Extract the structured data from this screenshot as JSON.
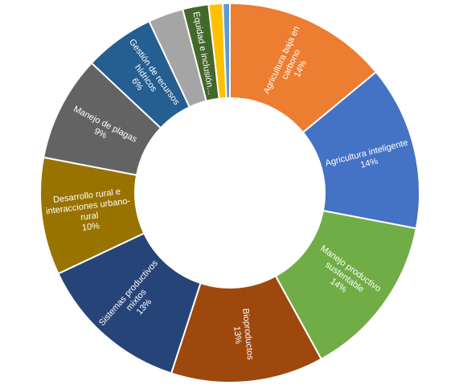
{
  "chart_data": {
    "type": "pie",
    "donut": true,
    "legend": "none",
    "slices": [
      {
        "label": "Agricultura baja en carbono",
        "lines": [
          "Agricultura baja en",
          "carbono",
          "14%"
        ],
        "value": 14,
        "color": "#ED7D31"
      },
      {
        "label": "Agricultura inteligente",
        "lines": [
          "Agricultura inteligente",
          "14%"
        ],
        "value": 14,
        "color": "#4472C4"
      },
      {
        "label": "Manejo productivo sustentable",
        "lines": [
          "Manejo productivo",
          "sustentable",
          "14%"
        ],
        "value": 14,
        "color": "#70AD47"
      },
      {
        "label": "Bioproductos",
        "lines": [
          "Bioproductos",
          "13%"
        ],
        "value": 13,
        "color": "#9E480E"
      },
      {
        "label": "Sistemas productivos mixtos",
        "lines": [
          "Sistemas productivos",
          "mixtos",
          "13%"
        ],
        "value": 13,
        "color": "#264478"
      },
      {
        "label": "Desarrollo rural e interacciones urbano-rural",
        "lines": [
          "Desarrollo rural e",
          "interacciones urbano-",
          "rural",
          "10%"
        ],
        "value": 10,
        "color": "#997300"
      },
      {
        "label": "Manejo de plagas",
        "lines": [
          "Manejo de plagas",
          "9%"
        ],
        "value": 9,
        "color": "#636363"
      },
      {
        "label": "Gestión de recursos hídricos",
        "lines": [
          "Gestión de recursos",
          "hídricos",
          "6%"
        ],
        "value": 6,
        "color": "#255E91"
      },
      {
        "label": "",
        "lines": [],
        "value": 3,
        "color": "#A5A5A5"
      },
      {
        "label": "Equidad e inclusión...",
        "lines": [
          "Equidad e inclusión..."
        ],
        "value": 2.2,
        "color": "#43682B"
      },
      {
        "label": "",
        "lines": [],
        "value": 1.2,
        "color": "#FFC000"
      },
      {
        "label": "",
        "lines": [],
        "value": 0.6,
        "color": "#5B9BD5"
      }
    ]
  }
}
